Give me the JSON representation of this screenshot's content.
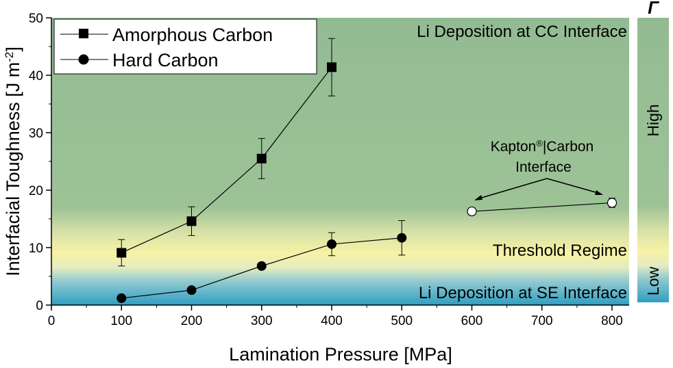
{
  "chart_data": {
    "type": "line",
    "xlabel": "Lamination Pressure [MPa]",
    "ylabel": "Interfacial Toughness [J m",
    "ylabel_sup": "-2",
    "ylabel_end": "]",
    "xlim": [
      0,
      830
    ],
    "ylim": [
      0,
      50
    ],
    "xticks": [
      0,
      100,
      200,
      300,
      400,
      500,
      600,
      700,
      800
    ],
    "yticks": [
      0,
      10,
      20,
      30,
      40,
      50
    ],
    "series": [
      {
        "name": "Amorphous Carbon",
        "marker": "square",
        "x": [
          100,
          200,
          300,
          400
        ],
        "y": [
          9.1,
          14.6,
          25.5,
          41.4
        ],
        "err": [
          2.3,
          2.5,
          3.5,
          5.0
        ]
      },
      {
        "name": "Hard Carbon",
        "marker": "circle",
        "x": [
          100,
          200,
          300,
          400,
          500
        ],
        "y": [
          1.2,
          2.6,
          6.8,
          10.6,
          11.7
        ],
        "err": [
          0,
          0,
          0,
          2.0,
          3.0
        ]
      },
      {
        "name": "",
        "marker": "open-circle",
        "x": [
          600,
          800
        ],
        "y": [
          16.3,
          17.8
        ],
        "err": [
          0.6,
          0.8
        ]
      }
    ],
    "regions": {
      "top": "Li Deposition at CC Interface",
      "middle": "Threshold Regime",
      "bottom": "Li Deposition at SE Interface"
    },
    "annotation": {
      "line1_a": "Kapton",
      "line1_sup": "®",
      "line1_b": "|Carbon",
      "line2": "Interface"
    },
    "colorbar": {
      "title": "Γ",
      "high": "High",
      "low": "Low"
    },
    "colors": {
      "high_region": "#93bb93",
      "threshold": "#f7f2a6",
      "low_region": "#2f9fc2",
      "marker": "#000000"
    },
    "legend_position": "top-left"
  }
}
